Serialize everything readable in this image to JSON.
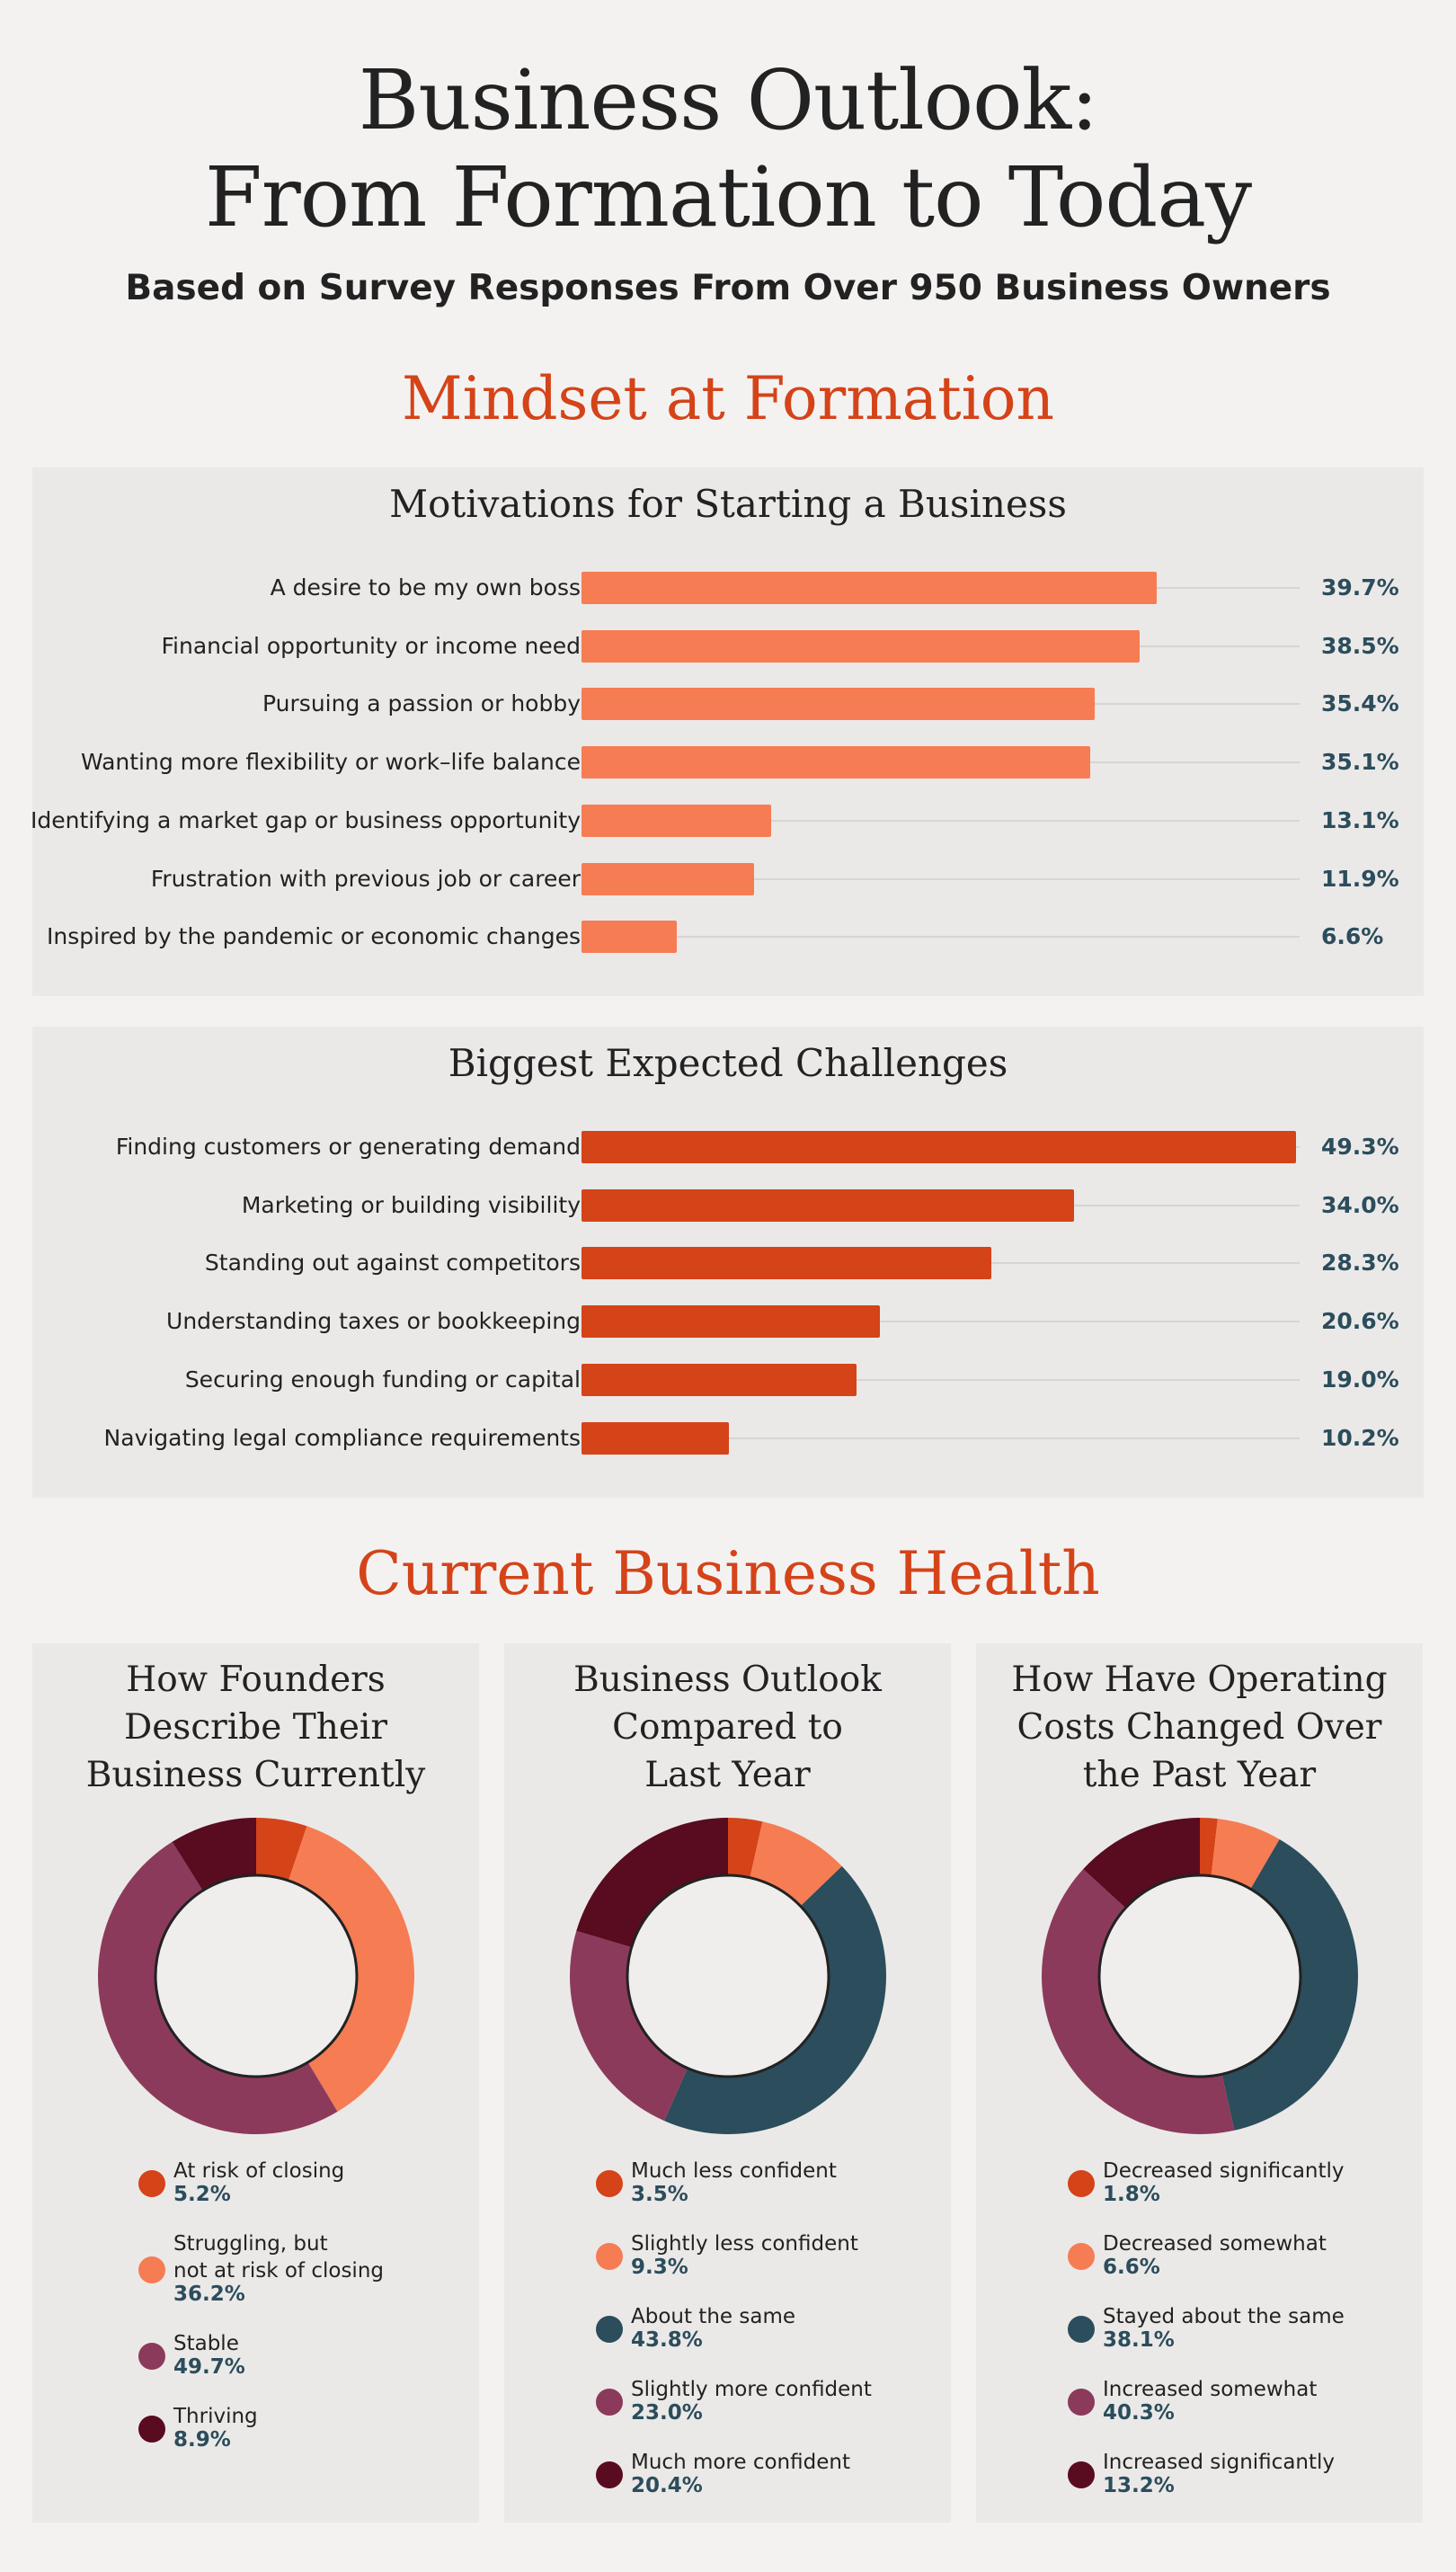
{
  "header": {
    "title_line1": "Business Outlook:",
    "title_line2": "From Formation to Today",
    "subtitle": "Based on Survey Responses From Over 950 Business Owners"
  },
  "sections": {
    "formation": "Mindset at Formation",
    "health": "Current Business Health"
  },
  "colors": {
    "motivation_bar": "#f67c53",
    "challenge_bar": "#d54319",
    "value_text": "#2b4d5c"
  },
  "chart_data": [
    {
      "type": "bar",
      "orientation": "horizontal",
      "title": "Motivations for Starting a Business",
      "categories": [
        "A desire to be my own boss",
        "Financial opportunity or income need",
        "Pursuing a passion or hobby",
        "Wanting more flexibility or work–life balance",
        "Identifying a market gap or business opportunity",
        "Frustration with previous job or career",
        "Inspired by the pandemic or economic changes"
      ],
      "values": [
        39.7,
        38.5,
        35.4,
        35.1,
        13.1,
        11.9,
        6.6
      ],
      "value_labels": [
        "39.7%",
        "38.5%",
        "35.4%",
        "35.1%",
        "13.1%",
        "11.9%",
        "6.6%"
      ],
      "xlim": [
        0,
        49.3
      ]
    },
    {
      "type": "bar",
      "orientation": "horizontal",
      "title": "Biggest Expected Challenges",
      "categories": [
        "Finding customers or generating demand",
        "Marketing or building visibility",
        "Standing out against competitors",
        "Understanding taxes or bookkeeping",
        "Securing enough funding or capital",
        "Navigating legal compliance requirements"
      ],
      "values": [
        49.3,
        34.0,
        28.3,
        20.6,
        19.0,
        10.2
      ],
      "value_labels": [
        "49.3%",
        "34.0%",
        "28.3%",
        "20.6%",
        "19.0%",
        "10.2%"
      ],
      "xlim": [
        0,
        49.3
      ]
    },
    {
      "type": "pie",
      "title": "How Founders\nDescribe Their\nBusiness Currently",
      "categories": [
        "At risk of closing",
        "Struggling, but\nnot at risk of closing",
        "Stable",
        "Thriving"
      ],
      "values": [
        5.2,
        36.2,
        49.7,
        8.9
      ],
      "value_labels": [
        "5.2%",
        "36.2%",
        "49.7%",
        "8.9%"
      ],
      "colors": [
        "#d54319",
        "#f67c53",
        "#8c3a5c",
        "#590b20"
      ]
    },
    {
      "type": "pie",
      "title": "Business Outlook\nCompared to\nLast Year",
      "categories": [
        "Much less confident",
        "Slightly less confident",
        "About the same",
        "Slightly more confident",
        "Much more confident"
      ],
      "values": [
        3.5,
        9.3,
        43.8,
        23.0,
        20.4
      ],
      "value_labels": [
        "3.5%",
        "9.3%",
        "43.8%",
        "23.0%",
        "20.4%"
      ],
      "colors": [
        "#d54319",
        "#f67c53",
        "#2b4d5c",
        "#8c3a5c",
        "#590b20"
      ]
    },
    {
      "type": "pie",
      "title": "How Have Operating\nCosts Changed Over\nthe Past Year",
      "categories": [
        "Decreased significantly",
        "Decreased somewhat",
        "Stayed about the same",
        "Increased somewhat",
        "Increased significantly"
      ],
      "values": [
        1.8,
        6.6,
        38.1,
        40.3,
        13.2
      ],
      "value_labels": [
        "1.8%",
        "6.6%",
        "38.1%",
        "40.3%",
        "13.2%"
      ],
      "colors": [
        "#d54319",
        "#f67c53",
        "#2b4d5c",
        "#8c3a5c",
        "#590b20"
      ]
    }
  ]
}
